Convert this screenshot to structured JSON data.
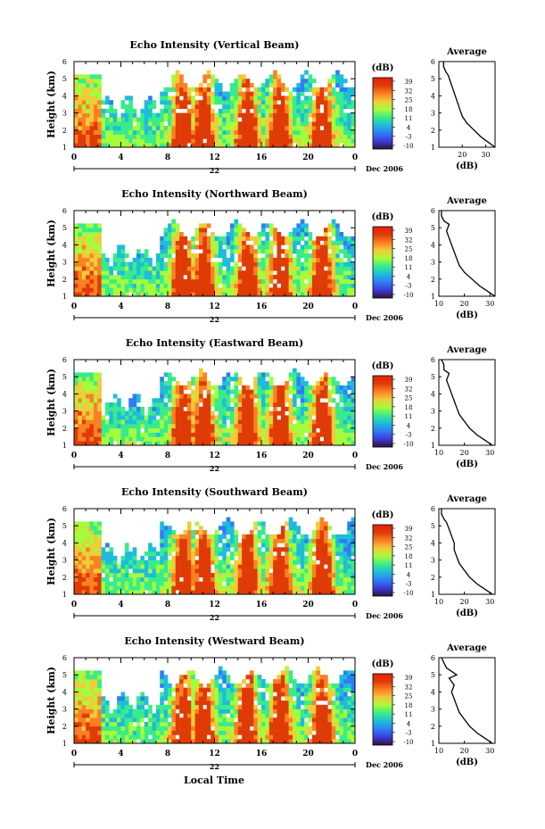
{
  "figure": {
    "x_axis_title": "Local Time",
    "date_label": "Dec 2006",
    "day_label": "22",
    "colorbar_unit": "(dB)",
    "colorbar_ticks": [
      "39",
      "32",
      "25",
      "18",
      "11",
      "4",
      "-3",
      "-10"
    ],
    "average_title": "Average",
    "average_xlabel": "(dB)"
  },
  "colors": {
    "colormap": [
      "#30123b",
      "#3c3bd6",
      "#2f7cf6",
      "#1ebcdb",
      "#39eb8b",
      "#a4fc3c",
      "#f0cb3a",
      "#fb8022",
      "#df3b07",
      "#e8210f"
    ]
  },
  "chart_data": [
    {
      "type": "heatmap",
      "title": "Echo Intensity (Vertical Beam)",
      "ylabel": "Height (km)",
      "xlabel": "Local Time",
      "x_ticks": [
        "0",
        "4",
        "8",
        "12",
        "16",
        "20",
        "0"
      ],
      "x_range_hours": [
        0,
        24
      ],
      "y_ticks": [
        1,
        2,
        3,
        4,
        5,
        6
      ],
      "ylim": [
        1,
        6
      ],
      "colorbar_range_dB": [
        -10,
        39
      ],
      "average_profile": {
        "title": "Average",
        "xlabel": "(dB)",
        "x_ticks": [
          20,
          30
        ],
        "xlim": [
          10,
          34
        ],
        "ylim": [
          1,
          6
        ],
        "height_km": [
          1.0,
          1.3,
          1.6,
          2.0,
          2.4,
          2.8,
          3.2,
          3.6,
          4.0,
          4.4,
          4.8,
          5.2,
          5.4,
          5.7,
          6.0
        ],
        "values_dB": [
          34,
          31,
          28,
          25,
          22,
          20,
          19,
          18,
          17,
          16,
          15,
          14,
          13,
          12,
          12
        ]
      }
    },
    {
      "type": "heatmap",
      "title": "Echo Intensity (Northward Beam)",
      "ylabel": "Height (km)",
      "xlabel": "Local Time",
      "x_ticks": [
        "0",
        "4",
        "8",
        "12",
        "16",
        "20",
        "0"
      ],
      "x_range_hours": [
        0,
        24
      ],
      "y_ticks": [
        1,
        2,
        3,
        4,
        5,
        6
      ],
      "ylim": [
        1,
        6
      ],
      "colorbar_range_dB": [
        -10,
        39
      ],
      "average_profile": {
        "title": "Average",
        "xlabel": "(dB)",
        "x_ticks": [
          10,
          20,
          30
        ],
        "xlim": [
          10,
          32
        ],
        "ylim": [
          1,
          6
        ],
        "height_km": [
          1.0,
          1.3,
          1.6,
          2.0,
          2.4,
          2.8,
          3.2,
          3.6,
          4.0,
          4.4,
          4.8,
          5.2,
          5.4,
          5.7,
          6.0
        ],
        "values_dB": [
          32,
          29,
          26,
          23,
          20,
          18,
          17,
          16,
          15,
          14,
          13,
          14,
          12,
          11,
          11
        ]
      }
    },
    {
      "type": "heatmap",
      "title": "Echo Intensity (Eastward Beam)",
      "ylabel": "Height (km)",
      "xlabel": "Local Time",
      "x_ticks": [
        "0",
        "4",
        "8",
        "12",
        "16",
        "20",
        "0"
      ],
      "x_range_hours": [
        0,
        24
      ],
      "y_ticks": [
        1,
        2,
        3,
        4,
        5,
        6
      ],
      "ylim": [
        1,
        6
      ],
      "colorbar_range_dB": [
        -10,
        39
      ],
      "average_profile": {
        "title": "Average",
        "xlabel": "(dB)",
        "x_ticks": [
          10,
          20,
          30
        ],
        "xlim": [
          10,
          32
        ],
        "ylim": [
          1,
          6
        ],
        "height_km": [
          1.0,
          1.3,
          1.6,
          2.0,
          2.4,
          2.8,
          3.2,
          3.6,
          4.0,
          4.4,
          4.8,
          5.2,
          5.4,
          5.7,
          6.0
        ],
        "values_dB": [
          31,
          28,
          25,
          22,
          20,
          18,
          17,
          16,
          15,
          14,
          13,
          14,
          12,
          12,
          11
        ]
      }
    },
    {
      "type": "heatmap",
      "title": "Echo Intensity (Southward Beam)",
      "ylabel": "Height (km)",
      "xlabel": "Local Time",
      "x_ticks": [
        "0",
        "4",
        "8",
        "12",
        "16",
        "20",
        "0"
      ],
      "x_range_hours": [
        0,
        24
      ],
      "y_ticks": [
        1,
        2,
        3,
        4,
        5,
        6
      ],
      "ylim": [
        1,
        6
      ],
      "colorbar_range_dB": [
        -10,
        39
      ],
      "average_profile": {
        "title": "Average",
        "xlabel": "(dB)",
        "x_ticks": [
          10,
          20,
          30
        ],
        "xlim": [
          10,
          32
        ],
        "ylim": [
          1,
          6
        ],
        "height_km": [
          1.0,
          1.3,
          1.6,
          2.0,
          2.4,
          2.8,
          3.2,
          3.6,
          4.0,
          4.4,
          4.8,
          5.2,
          5.4,
          5.7,
          6.0
        ],
        "values_dB": [
          31,
          28,
          25,
          22,
          20,
          18,
          17,
          16,
          16,
          15,
          14,
          13,
          12,
          11,
          11
        ]
      }
    },
    {
      "type": "heatmap",
      "title": "Echo Intensity (Westward Beam)",
      "ylabel": "Height (km)",
      "xlabel": "Local Time",
      "x_ticks": [
        "0",
        "4",
        "8",
        "12",
        "16",
        "20",
        "0"
      ],
      "x_range_hours": [
        0,
        24
      ],
      "y_ticks": [
        1,
        2,
        3,
        4,
        5,
        6
      ],
      "ylim": [
        1,
        6
      ],
      "colorbar_range_dB": [
        -10,
        39
      ],
      "average_profile": {
        "title": "Average",
        "xlabel": "(dB)",
        "x_ticks": [
          10,
          20,
          30
        ],
        "xlim": [
          10,
          32
        ],
        "ylim": [
          1,
          6
        ],
        "height_km": [
          1.0,
          1.3,
          1.6,
          2.0,
          2.4,
          2.8,
          3.2,
          3.6,
          4.0,
          4.4,
          4.8,
          5.0,
          5.4,
          5.7,
          6.0
        ],
        "values_dB": [
          31,
          28,
          25,
          22,
          20,
          18,
          17,
          16,
          15,
          16,
          14,
          17,
          13,
          12,
          11
        ]
      }
    }
  ]
}
